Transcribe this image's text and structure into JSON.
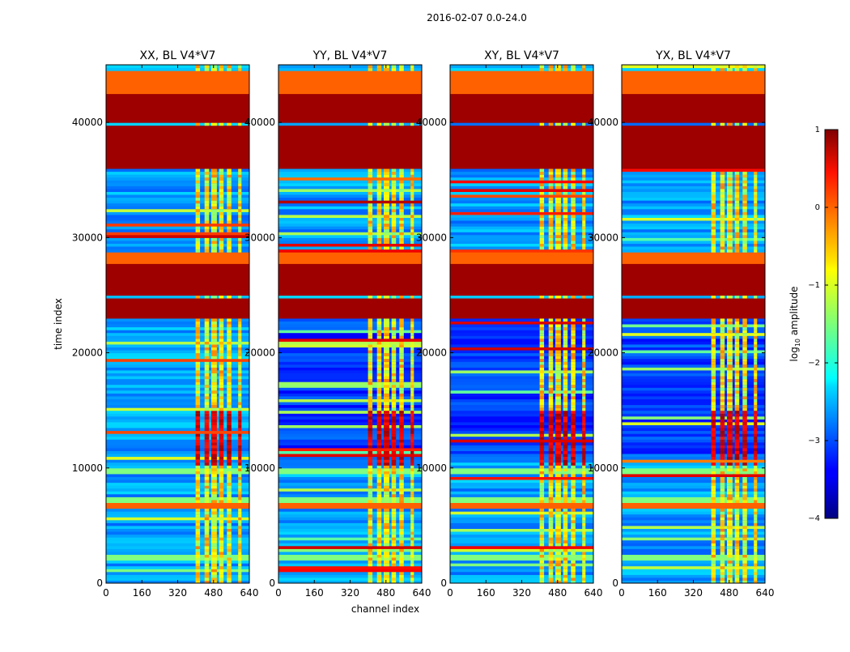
{
  "figure": {
    "suptitle": "2016-02-07 0.0-24.0",
    "xlabel": "channel index",
    "ylabel": "time index"
  },
  "chart_data": {
    "type": "heatmap",
    "colormap": "jet",
    "x_range": [
      0,
      640
    ],
    "y_range": [
      0,
      45000
    ],
    "xticks": [
      "0",
      "160",
      "320",
      "480",
      "640"
    ],
    "yticks": [
      "0",
      "10000",
      "20000",
      "30000",
      "40000"
    ],
    "panels": [
      {
        "title": "XX, BL V4*V7"
      },
      {
        "title": "YY, BL V4*V7"
      },
      {
        "title": "XY, BL V4*V7"
      },
      {
        "title": "YX, BL V4*V7"
      }
    ],
    "colorbar": {
      "label_prefix": "log",
      "label_sub": "10",
      "label_suffix": " amplitude",
      "range": [
        -4,
        1
      ],
      "ticks": [
        "1",
        "0",
        "−1",
        "−2",
        "−3",
        "−4"
      ]
    },
    "band_structure": {
      "note": "Horizontal bands across time; bright vertical stripes between channels ~400-600.",
      "stripe_channels": [
        [
          400,
          420
        ],
        [
          440,
          460
        ],
        [
          470,
          495
        ],
        [
          505,
          525
        ],
        [
          540,
          560
        ],
        [
          590,
          605
        ]
      ],
      "saturated_time_bands": [
        [
          23000,
          24600
        ],
        [
          25000,
          27600
        ],
        [
          36000,
          39600
        ],
        [
          40000,
          43600
        ]
      ],
      "orange_time_bands": [
        [
          42400,
          44400
        ],
        [
          27600,
          28600
        ],
        [
          6500,
          7000
        ]
      ],
      "green_time_bands": [
        [
          6800,
          7500
        ],
        [
          9500,
          9900
        ],
        [
          2000,
          2400
        ]
      ]
    }
  }
}
